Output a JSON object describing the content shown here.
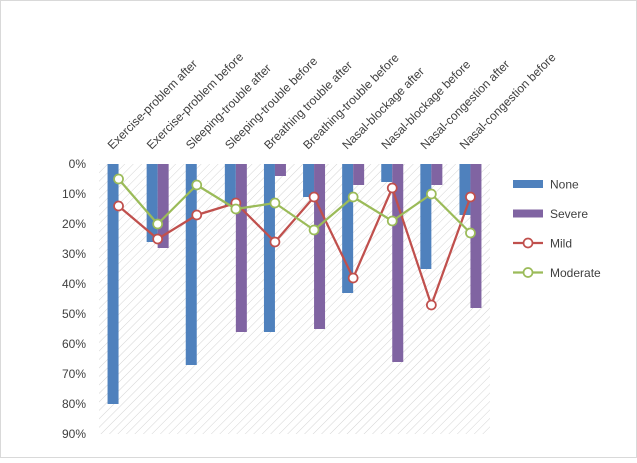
{
  "chart_data": {
    "type": "bar",
    "title": "",
    "xlabel": "",
    "ylabel": "",
    "y_axis": {
      "reversed": true,
      "ylim": [
        0,
        90
      ],
      "tick_step": 10,
      "tick_suffix": "%"
    },
    "grid": false,
    "plot_background": "hatched",
    "legend_position": "right",
    "categories": [
      "Exercise-problem after",
      "Exercise-problem before",
      "Sleeping-trouble after",
      "Sleeping-trouble before",
      "Breathing trouble after",
      "Breathing-trouble before",
      "Nasal-blockage after",
      "Nasal-blockage before",
      "Nasal-congestion after",
      "Nasal-congestion before"
    ],
    "series": [
      {
        "name": "None",
        "type": "bar",
        "color": "#4f81bd",
        "values": [
          80,
          26,
          67,
          14,
          56,
          11,
          43,
          6,
          35,
          17
        ]
      },
      {
        "name": "Severe",
        "type": "bar",
        "color": "#8064a2",
        "values": [
          0,
          28,
          0,
          56,
          4,
          55,
          7,
          66,
          7,
          48
        ]
      },
      {
        "name": "Mild",
        "type": "line",
        "color": "#c0504d",
        "values": [
          14,
          25,
          17,
          13,
          26,
          11,
          38,
          8,
          47,
          11
        ]
      },
      {
        "name": "Moderate",
        "type": "line",
        "color": "#9bbb59",
        "values": [
          5,
          20,
          7,
          15,
          13,
          22,
          11,
          19,
          10,
          23
        ]
      }
    ]
  }
}
